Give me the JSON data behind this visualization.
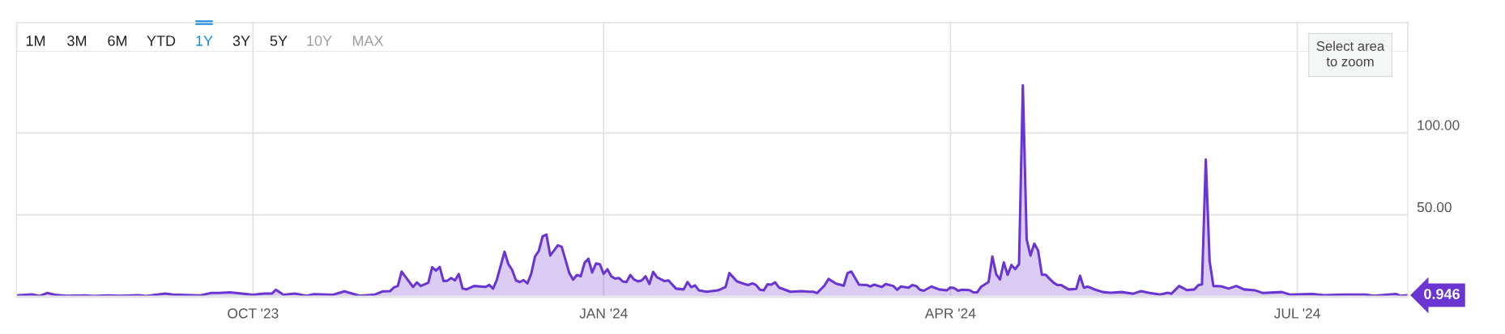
{
  "chart_data": {
    "type": "area",
    "x": [
      "2023-07-31",
      "2023-08-04",
      "2023-08-06",
      "2023-08-08",
      "2023-08-10",
      "2023-08-13",
      "2023-08-18",
      "2023-08-20",
      "2023-08-24",
      "2023-08-27",
      "2023-09-01",
      "2023-09-03",
      "2023-09-08",
      "2023-09-10",
      "2023-09-17",
      "2023-09-20",
      "2023-09-22",
      "2023-09-25",
      "2023-10-01",
      "2023-10-04",
      "2023-10-06",
      "2023-10-07",
      "2023-10-09",
      "2023-10-12",
      "2023-10-15",
      "2023-10-17",
      "2023-10-22",
      "2023-10-25",
      "2023-10-29",
      "2023-11-02",
      "2023-11-04",
      "2023-11-06",
      "2023-11-07",
      "2023-11-08",
      "2023-11-09",
      "2023-11-12",
      "2023-11-13",
      "2023-11-14",
      "2023-11-16",
      "2023-11-17",
      "2023-11-18",
      "2023-11-19",
      "2023-11-20",
      "2023-11-21",
      "2023-11-22",
      "2023-11-23",
      "2023-11-24",
      "2023-11-25",
      "2023-11-26",
      "2023-11-28",
      "2023-12-01",
      "2023-12-02",
      "2023-12-03",
      "2023-12-04",
      "2023-12-06",
      "2023-12-07",
      "2023-12-08",
      "2023-12-09",
      "2023-12-10",
      "2023-12-11",
      "2023-12-12",
      "2023-12-13",
      "2023-12-14",
      "2023-12-15",
      "2023-12-16",
      "2023-12-17",
      "2023-12-18",
      "2023-12-20",
      "2023-12-21",
      "2023-12-23",
      "2023-12-24",
      "2023-12-25",
      "2023-12-26",
      "2023-12-27",
      "2023-12-28",
      "2023-12-29",
      "2023-12-30",
      "2023-12-31",
      "2024-01-01",
      "2024-01-02",
      "2024-01-03",
      "2024-01-04",
      "2024-01-05",
      "2024-01-06",
      "2024-01-07",
      "2024-01-08",
      "2024-01-09",
      "2024-01-10",
      "2024-01-11",
      "2024-01-12",
      "2024-01-13",
      "2024-01-14",
      "2024-01-15",
      "2024-01-17",
      "2024-01-18",
      "2024-01-20",
      "2024-01-22",
      "2024-01-23",
      "2024-01-24",
      "2024-01-25",
      "2024-01-26",
      "2024-01-28",
      "2024-01-31",
      "2024-02-02",
      "2024-02-03",
      "2024-02-05",
      "2024-02-07",
      "2024-02-08",
      "2024-02-09",
      "2024-02-10",
      "2024-02-11",
      "2024-02-12",
      "2024-02-13",
      "2024-02-14",
      "2024-02-15",
      "2024-02-16",
      "2024-02-19",
      "2024-02-22",
      "2024-02-24",
      "2024-02-25",
      "2024-02-26",
      "2024-02-28",
      "2024-02-29",
      "2024-03-02",
      "2024-03-04",
      "2024-03-05",
      "2024-03-06",
      "2024-03-08",
      "2024-03-10",
      "2024-03-11",
      "2024-03-12",
      "2024-03-14",
      "2024-03-15",
      "2024-03-17",
      "2024-03-18",
      "2024-03-19",
      "2024-03-21",
      "2024-03-22",
      "2024-03-23",
      "2024-03-24",
      "2024-03-25",
      "2024-03-27",
      "2024-03-29",
      "2024-03-31",
      "2024-04-01",
      "2024-04-02",
      "2024-04-03",
      "2024-04-04",
      "2024-04-06",
      "2024-04-07",
      "2024-04-08",
      "2024-04-09",
      "2024-04-11",
      "2024-04-12",
      "2024-04-13",
      "2024-04-14",
      "2024-04-15",
      "2024-04-16",
      "2024-04-17",
      "2024-04-18",
      "2024-04-19",
      "2024-04-20",
      "2024-04-21",
      "2024-04-22",
      "2024-04-23",
      "2024-04-24",
      "2024-04-25",
      "2024-04-26",
      "2024-04-28",
      "2024-04-29",
      "2024-04-30",
      "2024-05-02",
      "2024-05-04",
      "2024-05-05",
      "2024-05-06",
      "2024-05-07",
      "2024-05-09",
      "2024-05-11",
      "2024-05-13",
      "2024-05-16",
      "2024-05-19",
      "2024-05-21",
      "2024-05-23",
      "2024-05-26",
      "2024-05-28",
      "2024-05-29",
      "2024-05-31",
      "2024-06-02",
      "2024-06-04",
      "2024-06-05",
      "2024-06-06",
      "2024-06-07",
      "2024-06-08",
      "2024-06-09",
      "2024-06-11",
      "2024-06-13",
      "2024-06-15",
      "2024-06-17",
      "2024-06-20",
      "2024-06-22",
      "2024-06-27",
      "2024-06-29",
      "2024-07-05",
      "2024-07-08",
      "2024-07-13",
      "2024-07-19",
      "2024-07-21",
      "2024-07-27",
      "2024-07-28",
      "2024-07-30"
    ],
    "series": [
      {
        "color": "#6a35d1",
        "values": [
          0.8,
          1.5,
          0.5,
          2.3,
          1.2,
          0.6,
          0.8,
          0.5,
          0.8,
          0.6,
          1.0,
          0.5,
          2.0,
          1.4,
          0.8,
          2.3,
          2.3,
          2.7,
          1.2,
          2.0,
          2.0,
          4.3,
          1.2,
          2.0,
          0.6,
          1.6,
          1.2,
          3.3,
          0.6,
          1.4,
          3.3,
          3.5,
          5.7,
          6.6,
          15.4,
          6.0,
          8.8,
          6.6,
          8.6,
          18.0,
          16.0,
          18.2,
          9.6,
          9.8,
          11.5,
          10.0,
          13.9,
          5.0,
          4.5,
          6.6,
          6.0,
          7.2,
          5.0,
          10.5,
          27.5,
          19.9,
          16.4,
          10.0,
          9.0,
          10.2,
          8.2,
          14.0,
          24.6,
          28.0,
          36.9,
          37.9,
          25.2,
          31.4,
          30.5,
          14.5,
          10.5,
          13.3,
          12.5,
          20.7,
          23.2,
          14.8,
          20.3,
          19.9,
          14.0,
          16.8,
          12.5,
          11.1,
          11.5,
          9.4,
          9.0,
          13.3,
          10.5,
          9.4,
          10.0,
          12.5,
          7.8,
          15.2,
          11.9,
          9.6,
          10.0,
          5.0,
          4.5,
          9.0,
          5.9,
          7.0,
          3.9,
          3.1,
          3.9,
          6.0,
          14.5,
          9.4,
          7.8,
          7.2,
          8.2,
          7.2,
          4.3,
          3.9,
          7.6,
          7.4,
          8.8,
          5.7,
          3.1,
          3.5,
          3.1,
          3.1,
          2.3,
          7.0,
          10.9,
          8.0,
          6.8,
          14.5,
          15.4,
          7.4,
          7.2,
          6.3,
          7.4,
          6.0,
          7.8,
          6.6,
          4.3,
          6.3,
          5.5,
          7.2,
          6.6,
          4.3,
          3.7,
          6.3,
          4.5,
          3.9,
          5.7,
          5.3,
          3.7,
          4.3,
          4.1,
          2.7,
          2.7,
          6.0,
          9.0,
          24.6,
          13.8,
          10.5,
          21.0,
          13.4,
          19.4,
          16.9,
          20.0,
          129,
          34.9,
          25.2,
          32.4,
          28.3,
          13.4,
          13.4,
          8.7,
          7.2,
          7.2,
          4.5,
          4.8,
          12.8,
          5.6,
          6.2,
          4.3,
          2.9,
          2.5,
          2.9,
          1.9,
          3.5,
          2.5,
          1.4,
          2.5,
          1.9,
          6.6,
          4.1,
          4.5,
          7.0,
          7.6,
          83.7,
          21.7,
          6.6,
          6.4,
          5.0,
          6.6,
          4.5,
          3.9,
          2.3,
          2.9,
          1.4,
          1.7,
          1.0,
          1.4,
          1.4,
          0.6,
          1.7,
          0.6,
          0.946
        ]
      }
    ],
    "xlim": [
      "2023-07-31",
      "2024-07-30"
    ],
    "xticks": [
      {
        "value": "2023-10-01",
        "label": "OCT '23"
      },
      {
        "value": "2024-01-01",
        "label": "JAN '24"
      },
      {
        "value": "2024-04-01",
        "label": "APR '24"
      },
      {
        "value": "2024-07-01",
        "label": "JUL '24"
      }
    ],
    "ylim": [
      0,
      150
    ],
    "yticks": [
      {
        "value": 50,
        "label": "50.00"
      },
      {
        "value": 100,
        "label": "100.00"
      },
      {
        "value": 150,
        "label": null
      }
    ],
    "grid": true,
    "annotations": [
      "1M",
      "3M",
      "6M",
      "YTD",
      "1Y",
      "3Y",
      "5Y",
      "10Y",
      "MAX",
      "Select area\nto zoom",
      {
        "text": "0.946",
        "x": "2024-07-30",
        "y": 0.946
      }
    ]
  }
}
